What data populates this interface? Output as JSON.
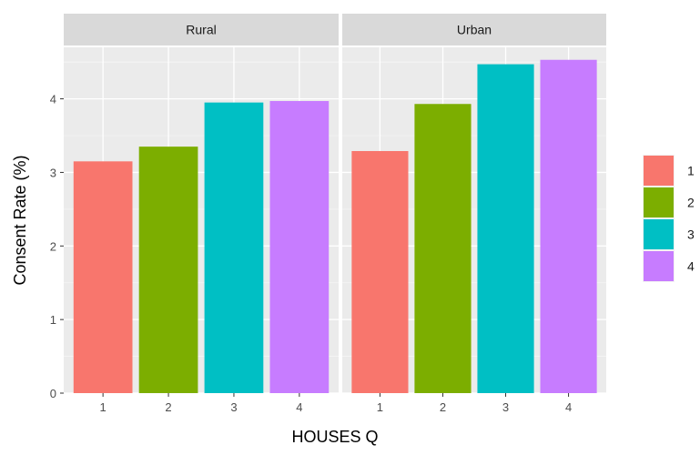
{
  "chart_data": {
    "type": "bar",
    "xlabel": "HOUSES Q",
    "ylabel": "Consent Rate (%)",
    "ylim": [
      0,
      4.7
    ],
    "yticks": [
      0,
      1,
      2,
      3,
      4
    ],
    "categories": [
      "1",
      "2",
      "3",
      "4"
    ],
    "colors": [
      "#F8766D",
      "#7CAE00",
      "#00BFC4",
      "#C77CFF"
    ],
    "panels": [
      {
        "name": "Rural",
        "values": [
          3.15,
          3.35,
          3.95,
          3.97
        ]
      },
      {
        "name": "Urban",
        "values": [
          3.29,
          3.93,
          4.47,
          4.53
        ]
      }
    ],
    "legend": {
      "position": "right",
      "entries": [
        "1",
        "2",
        "3",
        "4"
      ]
    },
    "grid": true
  }
}
